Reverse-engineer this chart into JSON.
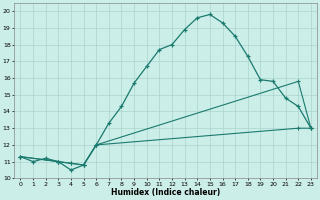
{
  "xlabel": "Humidex (Indice chaleur)",
  "xlim": [
    -0.5,
    23.5
  ],
  "ylim": [
    10.0,
    20.5
  ],
  "yticks": [
    10,
    11,
    12,
    13,
    14,
    15,
    16,
    17,
    18,
    19,
    20
  ],
  "xticks": [
    0,
    1,
    2,
    3,
    4,
    5,
    6,
    7,
    8,
    9,
    10,
    11,
    12,
    13,
    14,
    15,
    16,
    17,
    18,
    19,
    20,
    21,
    22,
    23
  ],
  "bg_color": "#cceee8",
  "line_color": "#1a7a6e",
  "grid_color": "#aad4cc",
  "line1_x": [
    0,
    1,
    2,
    3,
    4,
    5,
    6,
    7,
    8,
    9,
    10,
    11,
    12,
    13,
    14,
    15,
    16,
    17,
    18,
    19,
    20,
    21,
    22,
    23
  ],
  "line1_y": [
    11.3,
    11.0,
    11.2,
    11.0,
    10.5,
    10.8,
    12.0,
    13.3,
    14.3,
    15.7,
    16.7,
    17.7,
    18.0,
    18.9,
    19.6,
    19.8,
    19.3,
    18.5,
    17.3,
    15.9,
    15.8,
    14.8,
    14.3,
    13.0
  ],
  "line2_x": [
    0,
    3,
    4,
    5,
    6,
    22,
    23
  ],
  "line2_y": [
    11.3,
    11.0,
    10.9,
    10.8,
    12.0,
    15.8,
    13.0
  ],
  "line3_x": [
    0,
    3,
    4,
    5,
    6,
    22,
    23
  ],
  "line3_y": [
    11.3,
    11.0,
    10.9,
    10.8,
    12.0,
    13.0,
    13.0
  ]
}
